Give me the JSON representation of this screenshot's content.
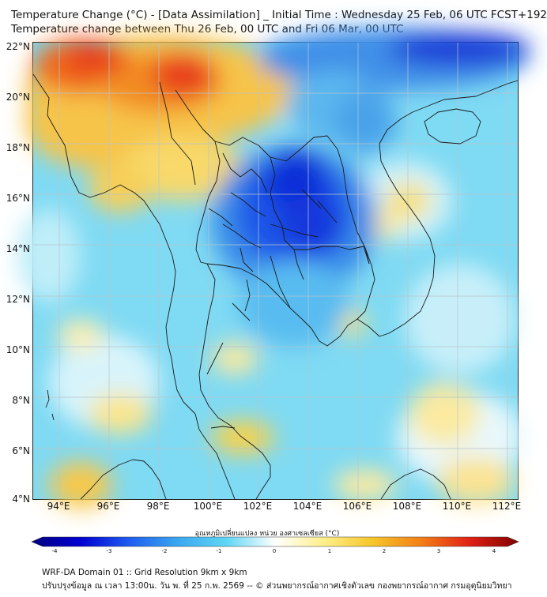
{
  "header": {
    "title_line1": "Temperature Change (°C) - [Data Assimilation] _ Initial Time : Wednesday 25 Feb, 06 UTC FCST+192",
    "title_line2": "Temperature change between Thu 26 Feb, 00 UTC and Fri 06 Mar, 00 UTC"
  },
  "axes": {
    "lat_labels": [
      "22°N",
      "20°N",
      "18°N",
      "16°N",
      "14°N",
      "12°N",
      "10°N",
      "8°N",
      "6°N",
      "4°N"
    ],
    "lon_labels": [
      "94°E",
      "96°E",
      "98°E",
      "100°E",
      "102°E",
      "104°E",
      "106°E",
      "108°E",
      "110°E",
      "112°E"
    ]
  },
  "colorbar": {
    "label": "อุณหภูมิเปลี่ยนแปลง หน่วย องศาเซลเซียส (°C)",
    "ticks": [
      "-4",
      "-3",
      "-2",
      "-1",
      "0",
      "1",
      "2",
      "3",
      "4"
    ],
    "stops": [
      "#00007f",
      "#0000d0",
      "#1e5cf0",
      "#3aa8f0",
      "#5fd6f5",
      "#ffffff",
      "#ffef8a",
      "#f6c62a",
      "#f37f18",
      "#e02014",
      "#7f0000"
    ]
  },
  "footer": {
    "line1": "WRF-DA Domain 01 :: Grid Resolution 9km x 9km",
    "line2": "ปรับปรุงข้อมูล ณ เวลา 13:00น. วัน พ. ที่ 25 ก.พ. 2569 -- © ส่วนพยากรณ์อากาศเชิงตัวเลข กองพยากรณ์อากาศ กรมอุตุนิยมวิทยา"
  }
}
